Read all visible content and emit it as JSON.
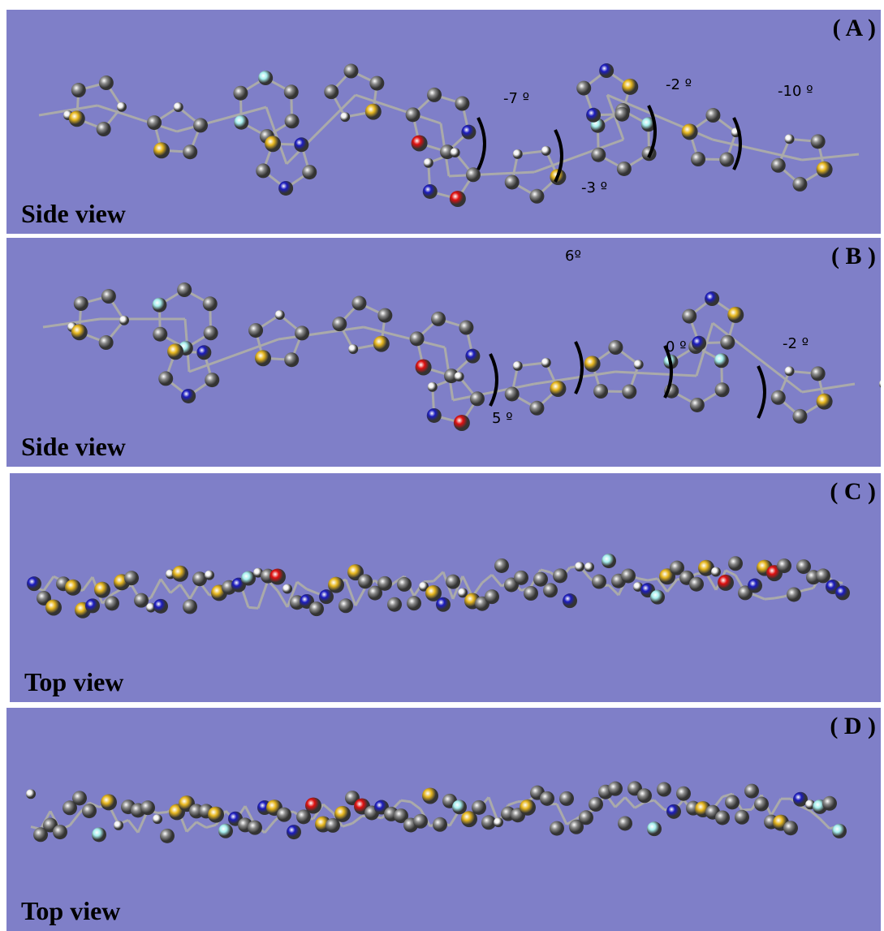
{
  "panels": [
    {
      "label": "( A )",
      "view": "Side view",
      "angles": [
        "-7 º",
        "-3 º",
        "-2 º",
        "-10 º"
      ]
    },
    {
      "label": "( B )",
      "view": "Side view",
      "angles": [
        "6º",
        "5 º",
        "0 º",
        "-2 º"
      ]
    },
    {
      "label": "( C )",
      "view": "Top view"
    },
    {
      "label": "( D )",
      "view": "Top view"
    }
  ]
}
